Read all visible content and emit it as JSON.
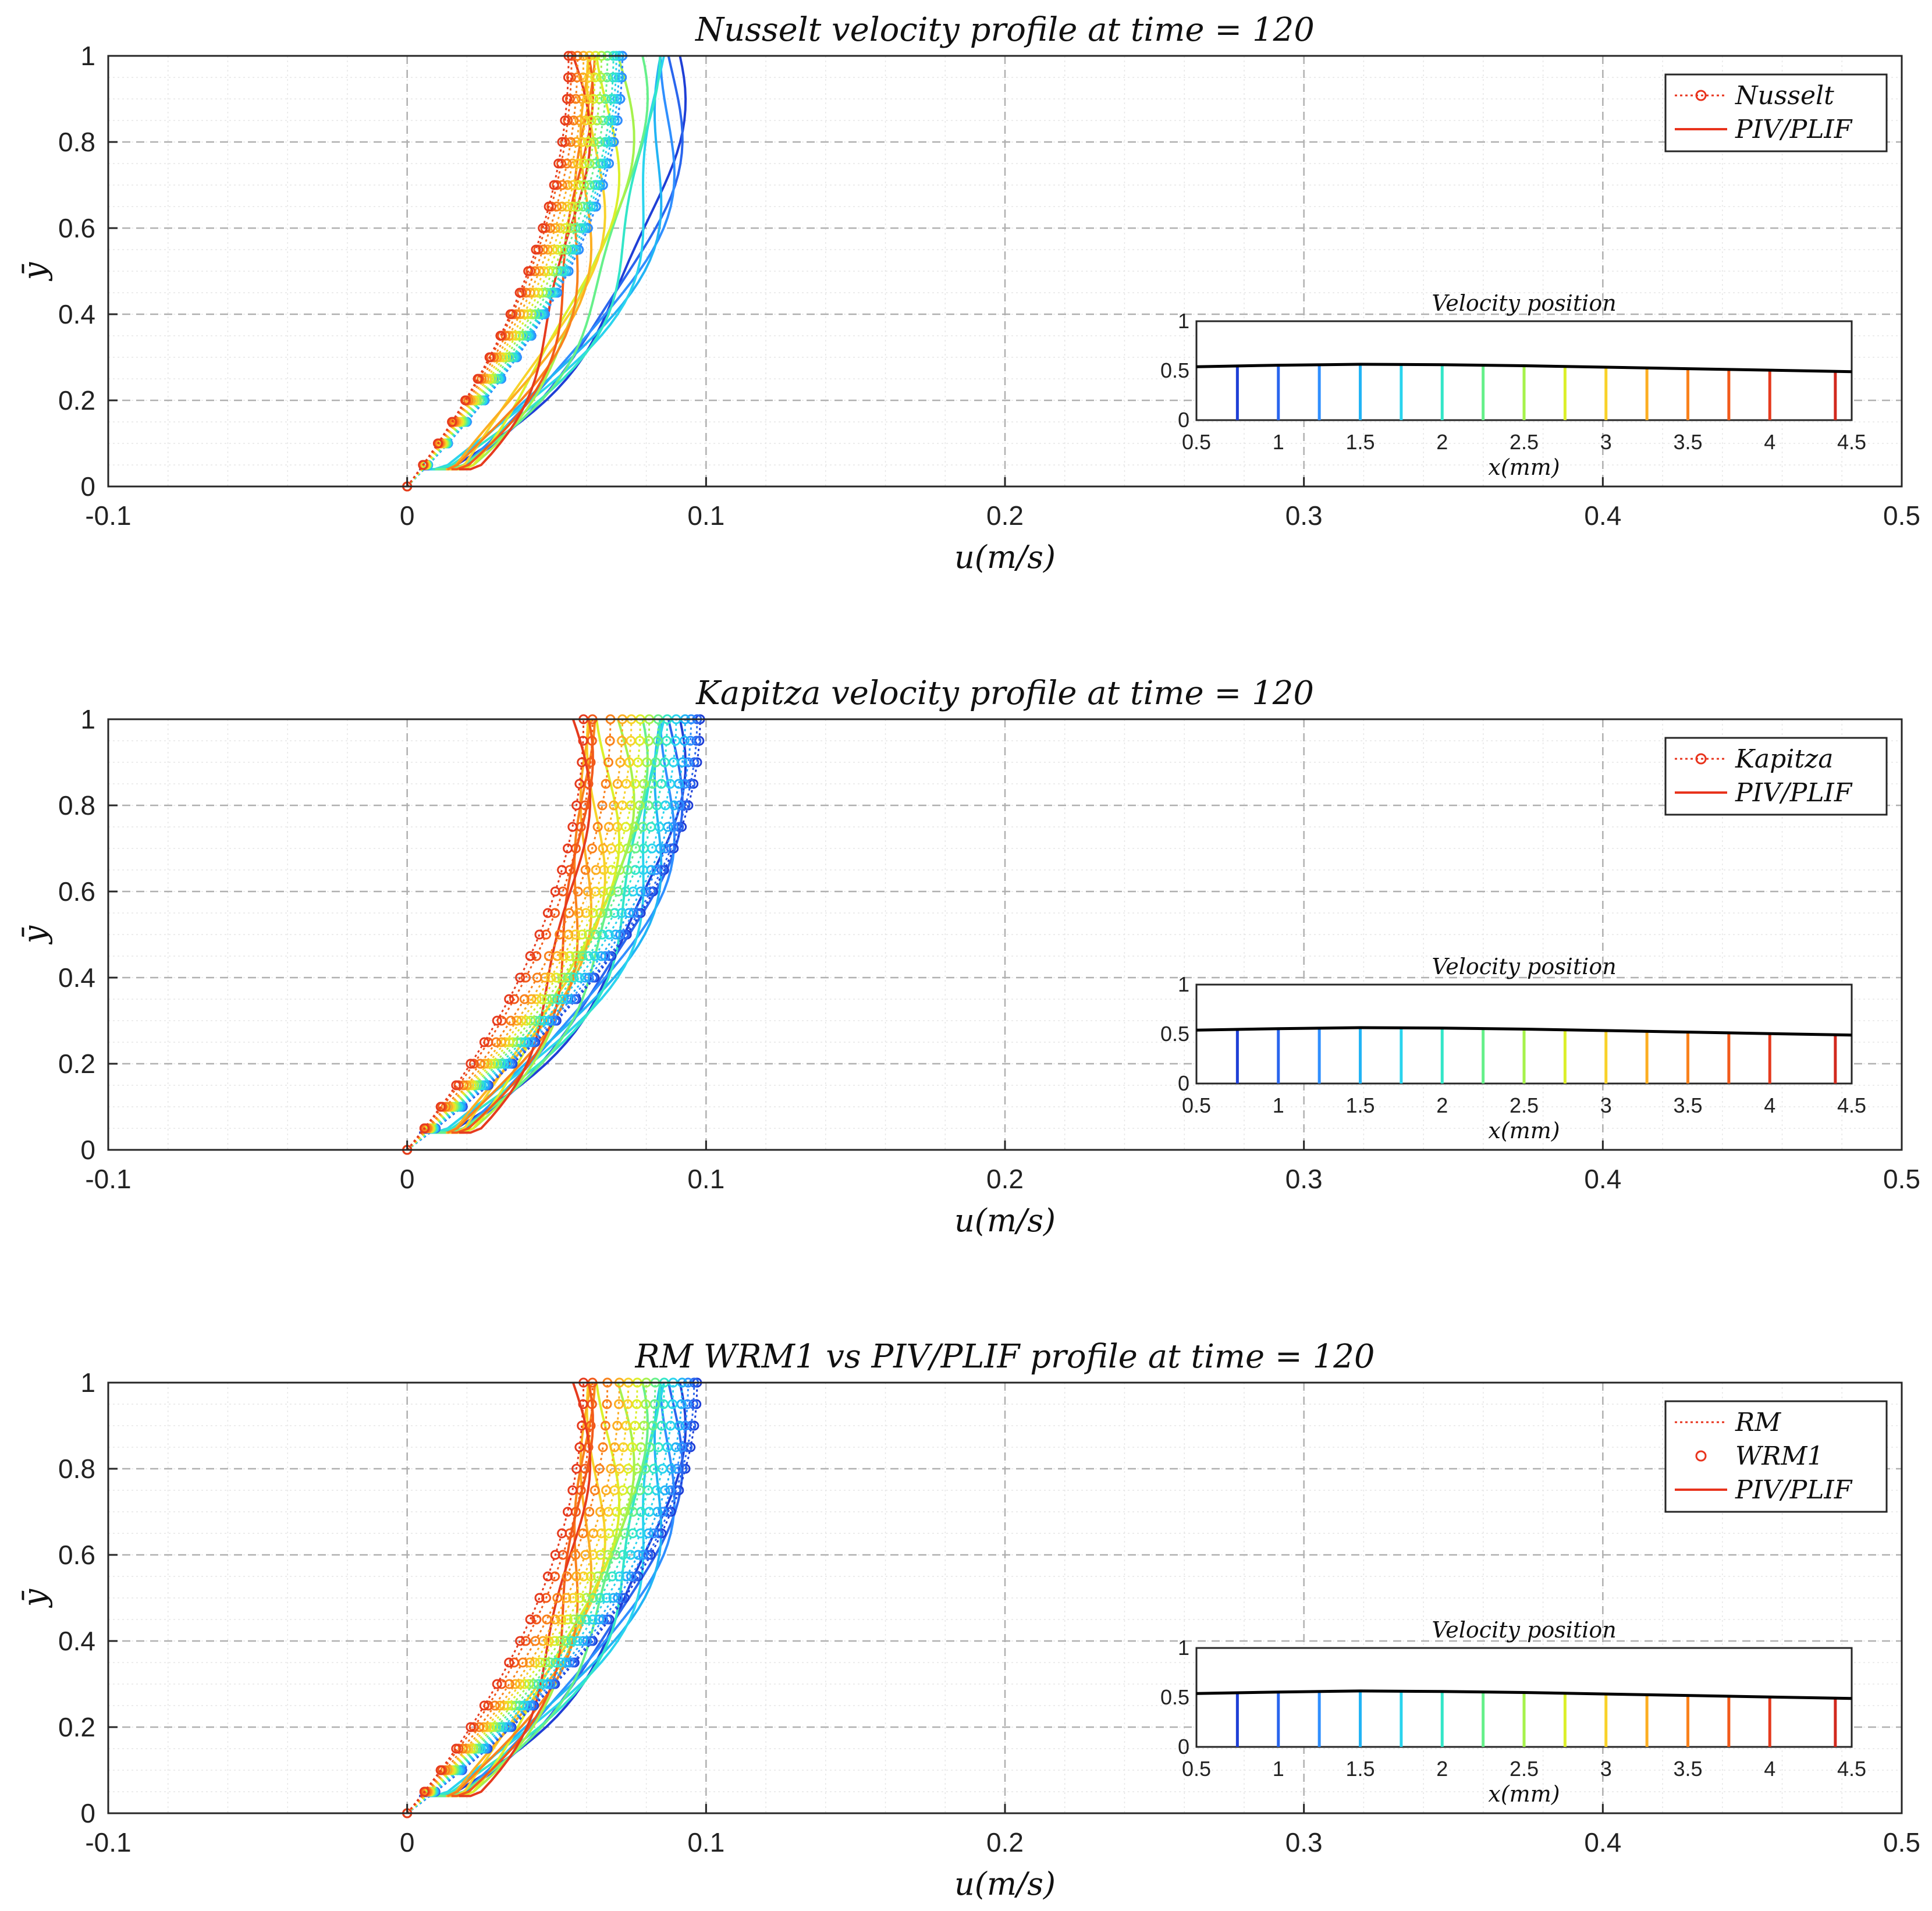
{
  "chart_data": [
    {
      "type": "line",
      "title": "Nusselt velocity profile at time = 120",
      "xlabel": "u(m/s)",
      "ylabel": "ȳ",
      "xlim": [
        -0.1,
        0.5
      ],
      "ylim": [
        0,
        1
      ],
      "xticks": [
        "-0.1",
        "0",
        "0.1",
        "0.2",
        "0.3",
        "0.4",
        "0.5"
      ],
      "yticks": [
        "0",
        "0.2",
        "0.4",
        "0.6",
        "0.8",
        "1"
      ],
      "grid": true,
      "legend": {
        "placement": "top-right",
        "entries": [
          "Nusselt",
          "PIV/PLIF"
        ]
      },
      "model_style": "dotted-circles",
      "series_model": [
        {
          "name": "Nusselt x=0.75",
          "color": "#1f3fd6",
          "umax": 0.072
        },
        {
          "name": "Nusselt x=1.0",
          "color": "#2a66ee",
          "umax": 0.072
        },
        {
          "name": "Nusselt x=1.25",
          "color": "#2f8fff",
          "umax": 0.072
        },
        {
          "name": "Nusselt x=1.5",
          "color": "#22b4f5",
          "umax": 0.071
        },
        {
          "name": "Nusselt x=1.75",
          "color": "#2ad4ee",
          "umax": 0.07
        },
        {
          "name": "Nusselt x=2.0",
          "color": "#33e6c8",
          "umax": 0.069
        },
        {
          "name": "Nusselt x=2.25",
          "color": "#66f08a",
          "umax": 0.067
        },
        {
          "name": "Nusselt x=2.5",
          "color": "#a6f24c",
          "umax": 0.065
        },
        {
          "name": "Nusselt x=2.75",
          "color": "#dcef2a",
          "umax": 0.063
        },
        {
          "name": "Nusselt x=3.0",
          "color": "#f8d22a",
          "umax": 0.061
        },
        {
          "name": "Nusselt x=3.25",
          "color": "#fcae22",
          "umax": 0.059
        },
        {
          "name": "Nusselt x=3.5",
          "color": "#f9821c",
          "umax": 0.057
        },
        {
          "name": "Nusselt x=3.75",
          "color": "#f25a1a",
          "umax": 0.055
        },
        {
          "name": "Nusselt x=4.0",
          "color": "#e63b1e",
          "umax": 0.054
        }
      ],
      "series_piv": [
        {
          "name": "PIV/PLIF x=0.75",
          "color": "#1f3fd6",
          "umax": 0.1
        },
        {
          "name": "PIV/PLIF x=1.0",
          "color": "#2a66ee",
          "umax": 0.1
        },
        {
          "name": "PIV/PLIF x=1.25",
          "color": "#2f8fff",
          "umax": 0.099
        },
        {
          "name": "PIV/PLIF x=1.5",
          "color": "#22b4f5",
          "umax": 0.097
        },
        {
          "name": "PIV/PLIF x=1.75",
          "color": "#2ad4ee",
          "umax": 0.094
        },
        {
          "name": "PIV/PLIF x=2.0",
          "color": "#33e6c8",
          "umax": 0.09
        },
        {
          "name": "PIV/PLIF x=2.25",
          "color": "#66f08a",
          "umax": 0.085
        },
        {
          "name": "PIV/PLIF x=2.5",
          "color": "#a6f24c",
          "umax": 0.08
        },
        {
          "name": "PIV/PLIF x=2.75",
          "color": "#dcef2a",
          "umax": 0.075
        },
        {
          "name": "PIV/PLIF x=3.0",
          "color": "#f8d22a",
          "umax": 0.071
        },
        {
          "name": "PIV/PLIF x=3.25",
          "color": "#fcae22",
          "umax": 0.068
        },
        {
          "name": "PIV/PLIF x=3.5",
          "color": "#f9821c",
          "umax": 0.066
        },
        {
          "name": "PIV/PLIF x=3.75",
          "color": "#f25a1a",
          "umax": 0.064
        },
        {
          "name": "PIV/PLIF x=4.0",
          "color": "#e63b1e",
          "umax": 0.062
        }
      ],
      "inset": {
        "title": "Velocity position",
        "xlabel": "x(mm)",
        "xlim": [
          0.5,
          4.5
        ],
        "ylim": [
          0,
          1
        ],
        "xticks": [
          "0.5",
          "1",
          "1.5",
          "2",
          "2.5",
          "3",
          "3.5",
          "4",
          "4.5"
        ],
        "yticks": [
          "0",
          "0.5",
          "1"
        ],
        "film_x": [
          0.5,
          1.0,
          1.5,
          2.0,
          2.5,
          3.0,
          3.5,
          4.0,
          4.5
        ],
        "film_h": [
          0.54,
          0.555,
          0.565,
          0.56,
          0.55,
          0.535,
          0.52,
          0.505,
          0.49
        ],
        "positions": [
          0.75,
          1.0,
          1.25,
          1.5,
          1.75,
          2.0,
          2.25,
          2.5,
          2.75,
          3.0,
          3.25,
          3.5,
          3.75,
          4.0,
          4.4
        ]
      }
    },
    {
      "type": "line",
      "title": "Kapitza velocity profile at time = 120",
      "xlabel": "u(m/s)",
      "ylabel": "ȳ",
      "xlim": [
        -0.1,
        0.5
      ],
      "ylim": [
        0,
        1
      ],
      "xticks": [
        "-0.1",
        "0",
        "0.1",
        "0.2",
        "0.3",
        "0.4",
        "0.5"
      ],
      "yticks": [
        "0",
        "0.2",
        "0.4",
        "0.6",
        "0.8",
        "1"
      ],
      "grid": true,
      "legend": {
        "placement": "top-right",
        "entries": [
          "Kapitza",
          "PIV/PLIF"
        ]
      },
      "model_style": "dotted-circles",
      "series_model": [
        {
          "name": "Kapitza x=0.75",
          "color": "#1f3fd6",
          "umax": 0.098
        },
        {
          "name": "Kapitza x=1.0",
          "color": "#2a66ee",
          "umax": 0.097
        },
        {
          "name": "Kapitza x=1.25",
          "color": "#2f8fff",
          "umax": 0.095
        },
        {
          "name": "Kapitza x=1.5",
          "color": "#22b4f5",
          "umax": 0.093
        },
        {
          "name": "Kapitza x=1.75",
          "color": "#2ad4ee",
          "umax": 0.09
        },
        {
          "name": "Kapitza x=2.0",
          "color": "#33e6c8",
          "umax": 0.087
        },
        {
          "name": "Kapitza x=2.25",
          "color": "#66f08a",
          "umax": 0.084
        },
        {
          "name": "Kapitza x=2.5",
          "color": "#a6f24c",
          "umax": 0.081
        },
        {
          "name": "Kapitza x=2.75",
          "color": "#dcef2a",
          "umax": 0.078
        },
        {
          "name": "Kapitza x=3.0",
          "color": "#f8d22a",
          "umax": 0.075
        },
        {
          "name": "Kapitza x=3.25",
          "color": "#fcae22",
          "umax": 0.072
        },
        {
          "name": "Kapitza x=3.5",
          "color": "#f9821c",
          "umax": 0.068
        },
        {
          "name": "Kapitza x=3.75",
          "color": "#f25a1a",
          "umax": 0.062
        },
        {
          "name": "Kapitza x=4.0",
          "color": "#e63b1e",
          "umax": 0.059
        }
      ],
      "series_piv": [
        {
          "name": "PIV/PLIF x=0.75",
          "color": "#1f3fd6",
          "umax": 0.1
        },
        {
          "name": "PIV/PLIF x=1.0",
          "color": "#2a66ee",
          "umax": 0.1
        },
        {
          "name": "PIV/PLIF x=1.25",
          "color": "#2f8fff",
          "umax": 0.099
        },
        {
          "name": "PIV/PLIF x=1.5",
          "color": "#22b4f5",
          "umax": 0.097
        },
        {
          "name": "PIV/PLIF x=1.75",
          "color": "#2ad4ee",
          "umax": 0.094
        },
        {
          "name": "PIV/PLIF x=2.0",
          "color": "#33e6c8",
          "umax": 0.09
        },
        {
          "name": "PIV/PLIF x=2.25",
          "color": "#66f08a",
          "umax": 0.085
        },
        {
          "name": "PIV/PLIF x=2.5",
          "color": "#a6f24c",
          "umax": 0.08
        },
        {
          "name": "PIV/PLIF x=2.75",
          "color": "#dcef2a",
          "umax": 0.075
        },
        {
          "name": "PIV/PLIF x=3.0",
          "color": "#f8d22a",
          "umax": 0.071
        },
        {
          "name": "PIV/PLIF x=3.25",
          "color": "#fcae22",
          "umax": 0.068
        },
        {
          "name": "PIV/PLIF x=3.5",
          "color": "#f9821c",
          "umax": 0.066
        },
        {
          "name": "PIV/PLIF x=3.75",
          "color": "#f25a1a",
          "umax": 0.064
        },
        {
          "name": "PIV/PLIF x=4.0",
          "color": "#e63b1e",
          "umax": 0.062
        }
      ],
      "inset": {
        "title": "Velocity position",
        "xlabel": "x(mm)",
        "xlim": [
          0.5,
          4.5
        ],
        "ylim": [
          0,
          1
        ],
        "xticks": [
          "0.5",
          "1",
          "1.5",
          "2",
          "2.5",
          "3",
          "3.5",
          "4",
          "4.5"
        ],
        "yticks": [
          "0",
          "0.5",
          "1"
        ],
        "film_x": [
          0.5,
          1.0,
          1.5,
          2.0,
          2.5,
          3.0,
          3.5,
          4.0,
          4.5
        ],
        "film_h": [
          0.54,
          0.555,
          0.565,
          0.56,
          0.55,
          0.535,
          0.52,
          0.505,
          0.49
        ],
        "positions": [
          0.75,
          1.0,
          1.25,
          1.5,
          1.75,
          2.0,
          2.25,
          2.5,
          2.75,
          3.0,
          3.25,
          3.5,
          3.75,
          4.0,
          4.4
        ]
      }
    },
    {
      "type": "line",
      "title": "RM  WRM1 vs PIV/PLIF profile at time = 120",
      "xlabel": "u(m/s)",
      "ylabel": "ȳ",
      "xlim": [
        -0.1,
        0.5
      ],
      "ylim": [
        0,
        1
      ],
      "xticks": [
        "-0.1",
        "0",
        "0.1",
        "0.2",
        "0.3",
        "0.4",
        "0.5"
      ],
      "yticks": [
        "0",
        "0.2",
        "0.4",
        "0.6",
        "0.8",
        "1"
      ],
      "grid": true,
      "legend": {
        "placement": "top-right",
        "entries": [
          "RM",
          "WRM1",
          "PIV/PLIF"
        ]
      },
      "model_style": "dotted-plus-open-circles",
      "series_model": [
        {
          "name": "RM/WRM1 x=0.75",
          "color": "#1f3fd6",
          "umax": 0.097
        },
        {
          "name": "RM/WRM1 x=1.0",
          "color": "#2a66ee",
          "umax": 0.096
        },
        {
          "name": "RM/WRM1 x=1.25",
          "color": "#2f8fff",
          "umax": 0.094
        },
        {
          "name": "RM/WRM1 x=1.5",
          "color": "#22b4f5",
          "umax": 0.092
        },
        {
          "name": "RM/WRM1 x=1.75",
          "color": "#2ad4ee",
          "umax": 0.089
        },
        {
          "name": "RM/WRM1 x=2.0",
          "color": "#33e6c8",
          "umax": 0.086
        },
        {
          "name": "RM/WRM1 x=2.25",
          "color": "#66f08a",
          "umax": 0.083
        },
        {
          "name": "RM/WRM1 x=2.5",
          "color": "#a6f24c",
          "umax": 0.08
        },
        {
          "name": "RM/WRM1 x=2.75",
          "color": "#dcef2a",
          "umax": 0.077
        },
        {
          "name": "RM/WRM1 x=3.0",
          "color": "#f8d22a",
          "umax": 0.074
        },
        {
          "name": "RM/WRM1 x=3.25",
          "color": "#fcae22",
          "umax": 0.071
        },
        {
          "name": "RM/WRM1 x=3.5",
          "color": "#f9821c",
          "umax": 0.067
        },
        {
          "name": "RM/WRM1 x=3.75",
          "color": "#f25a1a",
          "umax": 0.062
        },
        {
          "name": "RM/WRM1 x=4.0",
          "color": "#e63b1e",
          "umax": 0.059
        }
      ],
      "series_piv": [
        {
          "name": "PIV/PLIF x=0.75",
          "color": "#1f3fd6",
          "umax": 0.1
        },
        {
          "name": "PIV/PLIF x=1.0",
          "color": "#2a66ee",
          "umax": 0.1
        },
        {
          "name": "PIV/PLIF x=1.25",
          "color": "#2f8fff",
          "umax": 0.099
        },
        {
          "name": "PIV/PLIF x=1.5",
          "color": "#22b4f5",
          "umax": 0.097
        },
        {
          "name": "PIV/PLIF x=1.75",
          "color": "#2ad4ee",
          "umax": 0.094
        },
        {
          "name": "PIV/PLIF x=2.0",
          "color": "#33e6c8",
          "umax": 0.09
        },
        {
          "name": "PIV/PLIF x=2.25",
          "color": "#66f08a",
          "umax": 0.085
        },
        {
          "name": "PIV/PLIF x=2.5",
          "color": "#a6f24c",
          "umax": 0.08
        },
        {
          "name": "PIV/PLIF x=2.75",
          "color": "#dcef2a",
          "umax": 0.075
        },
        {
          "name": "PIV/PLIF x=3.0",
          "color": "#f8d22a",
          "umax": 0.071
        },
        {
          "name": "PIV/PLIF x=3.25",
          "color": "#fcae22",
          "umax": 0.068
        },
        {
          "name": "PIV/PLIF x=3.5",
          "color": "#f9821c",
          "umax": 0.066
        },
        {
          "name": "PIV/PLIF x=3.75",
          "color": "#f25a1a",
          "umax": 0.064
        },
        {
          "name": "PIV/PLIF x=4.0",
          "color": "#e63b1e",
          "umax": 0.062
        }
      ],
      "inset": {
        "title": "Velocity position",
        "xlabel": "x(mm)",
        "xlim": [
          0.5,
          4.5
        ],
        "ylim": [
          0,
          1
        ],
        "xticks": [
          "0.5",
          "1",
          "1.5",
          "2",
          "2.5",
          "3",
          "3.5",
          "4",
          "4.5"
        ],
        "yticks": [
          "0",
          "0.5",
          "1"
        ],
        "film_x": [
          0.5,
          1.0,
          1.5,
          2.0,
          2.5,
          3.0,
          3.5,
          4.0,
          4.5
        ],
        "film_h": [
          0.54,
          0.555,
          0.565,
          0.56,
          0.55,
          0.535,
          0.52,
          0.505,
          0.49
        ],
        "positions": [
          0.75,
          1.0,
          1.25,
          1.5,
          1.75,
          2.0,
          2.25,
          2.5,
          2.75,
          3.0,
          3.25,
          3.5,
          3.75,
          4.0,
          4.4
        ]
      }
    }
  ],
  "colors": {
    "axis": "#262626",
    "grid_major": "#b0b0b0",
    "grid_minor": "#e6e6e6",
    "film": "#000000",
    "legend_red": "#e8331c"
  }
}
